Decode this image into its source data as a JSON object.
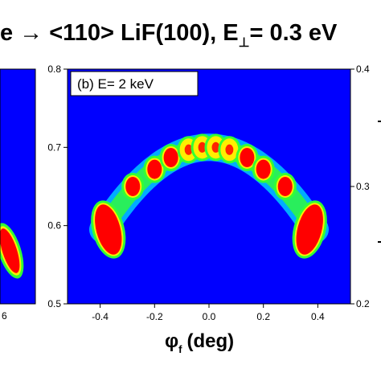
{
  "title": {
    "main": "e → <110> LiF(100), E",
    "sub": "⊥",
    "tail": "= 0.3 eV"
  },
  "colors": {
    "background": "#0000ff",
    "cyan": "#00e5ff",
    "green": "#33ff33",
    "yellow": "#ffee00",
    "red": "#ff0000",
    "axis": "#000000"
  },
  "chart_data": [
    {
      "type": "heatmap",
      "panel": "a (partially visible, left)",
      "xticks_visible": [
        "6"
      ],
      "ylim": [
        0.5,
        0.8
      ],
      "description_marks": "intensity arc edge"
    },
    {
      "type": "heatmap",
      "panel_label": "(b) E= 2 keV",
      "xlabel_symbol": "φ",
      "xlabel_sub": "f",
      "xlabel_unit": "(deg)",
      "xlim": [
        -0.52,
        0.52
      ],
      "ylim": [
        0.5,
        0.8
      ],
      "xticks": [
        -0.4,
        -0.2,
        0.0,
        0.2,
        0.4
      ],
      "xtick_labels": [
        "-0.4",
        "-0.2",
        "0.0",
        "0.2",
        "0.4"
      ],
      "yticks": [
        0.5,
        0.6,
        0.7,
        0.8
      ],
      "ytick_labels": [
        "0.5",
        "0.6",
        "0.7",
        "0.8"
      ],
      "arc": {
        "x_end": 0.39,
        "y_end": 0.595,
        "y_peak": 0.7
      },
      "spots": [
        {
          "x": -0.37,
          "y": 0.595,
          "level": "red"
        },
        {
          "x": -0.28,
          "y": 0.65,
          "level": "red"
        },
        {
          "x": -0.2,
          "y": 0.672,
          "level": "red"
        },
        {
          "x": -0.14,
          "y": 0.687,
          "level": "red"
        },
        {
          "x": -0.075,
          "y": 0.697,
          "level": "yellow"
        },
        {
          "x": -0.025,
          "y": 0.7,
          "level": "yellow"
        },
        {
          "x": 0.025,
          "y": 0.7,
          "level": "yellow"
        },
        {
          "x": 0.075,
          "y": 0.697,
          "level": "yellow"
        },
        {
          "x": 0.14,
          "y": 0.687,
          "level": "red"
        },
        {
          "x": 0.2,
          "y": 0.672,
          "level": "red"
        },
        {
          "x": 0.28,
          "y": 0.65,
          "level": "red"
        },
        {
          "x": 0.37,
          "y": 0.595,
          "level": "red"
        }
      ]
    },
    {
      "type": "heatmap",
      "panel": "c (partially visible, right)",
      "yticks_visible": [
        0.2,
        0.3,
        0.4
      ],
      "ytick_labels": [
        "0.2",
        "0.3",
        "0.4"
      ]
    }
  ]
}
